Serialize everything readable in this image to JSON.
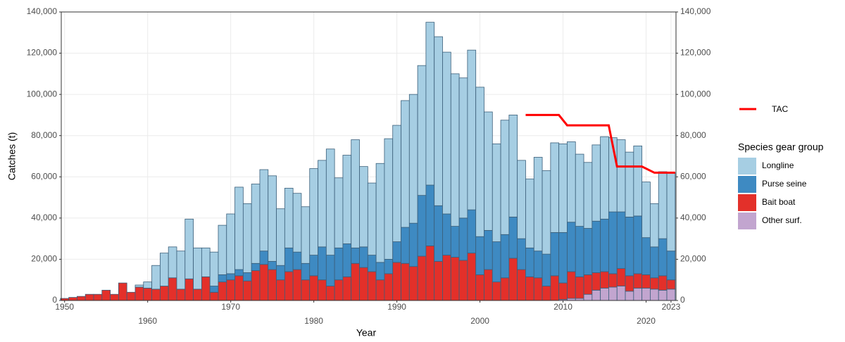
{
  "chart_data": {
    "type": "bar",
    "stacked": true,
    "x_label": "Year",
    "y_label": "Catches (t)",
    "legend_title": "Species gear group",
    "grid": true,
    "x": [
      1950,
      1951,
      1952,
      1953,
      1954,
      1955,
      1956,
      1957,
      1958,
      1959,
      1960,
      1961,
      1962,
      1963,
      1964,
      1965,
      1966,
      1967,
      1968,
      1969,
      1970,
      1971,
      1972,
      1973,
      1974,
      1975,
      1976,
      1977,
      1978,
      1979,
      1980,
      1981,
      1982,
      1983,
      1984,
      1985,
      1986,
      1987,
      1988,
      1989,
      1990,
      1991,
      1992,
      1993,
      1994,
      1995,
      1996,
      1997,
      1998,
      1999,
      2000,
      2001,
      2002,
      2003,
      2004,
      2005,
      2006,
      2007,
      2008,
      2009,
      2010,
      2011,
      2012,
      2013,
      2014,
      2015,
      2016,
      2017,
      2018,
      2019,
      2020,
      2021,
      2022,
      2023
    ],
    "series": [
      {
        "name": "Longline",
        "color": "#a6cee3",
        "values": [
          0,
          0,
          0,
          0,
          0,
          0,
          0,
          0,
          0,
          1000,
          3000,
          11500,
          16000,
          15000,
          18500,
          29000,
          20000,
          14000,
          16500,
          24000,
          29000,
          40000,
          33500,
          38500,
          39500,
          41500,
          27500,
          29000,
          28500,
          27500,
          42000,
          42000,
          51500,
          34000,
          43000,
          52500,
          39000,
          35000,
          48000,
          58500,
          56500,
          61500,
          62500,
          63000,
          79000,
          82000,
          78500,
          74000,
          68000,
          77500,
          72500,
          57500,
          47500,
          55500,
          49500,
          38000,
          33500,
          45500,
          40500,
          43500,
          43000,
          39000,
          35000,
          32000,
          37000,
          40000,
          36000,
          35000,
          31500,
          34000,
          27000,
          21000,
          32500,
          38000
        ]
      },
      {
        "name": "Purse seine",
        "color": "#3e8ac2",
        "values": [
          0,
          0,
          0,
          0,
          0,
          0,
          0,
          0,
          0,
          0,
          0,
          0,
          0,
          0,
          0,
          0,
          0,
          0,
          3000,
          3500,
          3000,
          3000,
          4000,
          3500,
          6500,
          4000,
          7000,
          11500,
          8500,
          8000,
          10000,
          16000,
          15000,
          15500,
          16000,
          7500,
          10000,
          8000,
          8500,
          7000,
          10000,
          17500,
          21000,
          29500,
          29500,
          27000,
          20000,
          15000,
          20500,
          21000,
          18500,
          19000,
          19500,
          21000,
          20000,
          15000,
          14000,
          13000,
          15500,
          21000,
          24500,
          24000,
          24500,
          22500,
          25000,
          25500,
          30000,
          27500,
          28500,
          28000,
          18000,
          15000,
          18000,
          14000
        ]
      },
      {
        "name": "Bait boat",
        "color": "#e3302a",
        "values": [
          1000,
          1500,
          2000,
          3000,
          3000,
          5000,
          3000,
          8500,
          4000,
          6500,
          6000,
          5500,
          7000,
          11000,
          5500,
          10500,
          5500,
          11500,
          4000,
          9000,
          10000,
          12000,
          9500,
          14500,
          17500,
          15000,
          10000,
          14000,
          15000,
          10000,
          12000,
          10000,
          7000,
          10000,
          11500,
          18000,
          16000,
          14000,
          10000,
          13000,
          18500,
          18000,
          16500,
          21500,
          26500,
          19000,
          22000,
          21000,
          19500,
          23000,
          12500,
          15000,
          9000,
          11000,
          20500,
          15000,
          11500,
          11000,
          7000,
          12000,
          8000,
          13000,
          10500,
          9500,
          8500,
          8000,
          6500,
          8500,
          7500,
          7000,
          6500,
          5500,
          7000,
          4500
        ]
      },
      {
        "name": "Other surf.",
        "color": "#c2a5cf",
        "values": [
          0,
          0,
          0,
          0,
          0,
          0,
          0,
          0,
          0,
          0,
          0,
          0,
          0,
          0,
          0,
          0,
          0,
          0,
          0,
          0,
          0,
          0,
          0,
          0,
          0,
          0,
          0,
          0,
          0,
          0,
          0,
          0,
          0,
          0,
          0,
          0,
          0,
          0,
          0,
          0,
          0,
          0,
          0,
          0,
          0,
          0,
          0,
          0,
          0,
          0,
          0,
          0,
          0,
          0,
          0,
          0,
          0,
          0,
          0,
          0,
          500,
          1000,
          1000,
          3000,
          5000,
          6000,
          6500,
          7000,
          4500,
          6000,
          6000,
          5500,
          5000,
          5500
        ]
      }
    ],
    "lines": [
      {
        "name": "TAC",
        "color": "#ff0000",
        "axis": "y2",
        "x": [
          2005.5,
          2009.5,
          2010.5,
          2015.5,
          2016.5,
          2019.5,
          2021,
          2023.5
        ],
        "values": [
          90000,
          90000,
          85000,
          85000,
          65000,
          65000,
          62000,
          62000
        ]
      }
    ],
    "xlim": [
      1949.6,
      2023.6
    ],
    "xticks": [
      1950,
      1960,
      1970,
      1980,
      1990,
      2000,
      2010,
      2020,
      2023
    ],
    "ylim": [
      0,
      140000
    ],
    "yticks": [
      0,
      {
        "value": 20000,
        "label": "20,000"
      },
      {
        "value": 40000,
        "label": "40,000"
      },
      {
        "value": 60000,
        "label": "60,000"
      },
      {
        "value": 80000,
        "label": "80,000"
      },
      {
        "value": 100000,
        "label": "100,000"
      },
      {
        "value": 120000,
        "label": "120,000"
      },
      {
        "value": 140000,
        "label": "140,000"
      }
    ],
    "y2lim": [
      0,
      140000
    ],
    "y2ticks": [
      0,
      {
        "value": 20000,
        "label": "20,000"
      },
      {
        "value": 40000,
        "label": "40,000"
      },
      {
        "value": 60000,
        "label": "60,000"
      },
      {
        "value": 80000,
        "label": "80,000"
      },
      {
        "value": 100000,
        "label": "100,000"
      },
      {
        "value": 120000,
        "label": "120,000"
      },
      {
        "value": 140000,
        "label": "140,000"
      }
    ]
  }
}
